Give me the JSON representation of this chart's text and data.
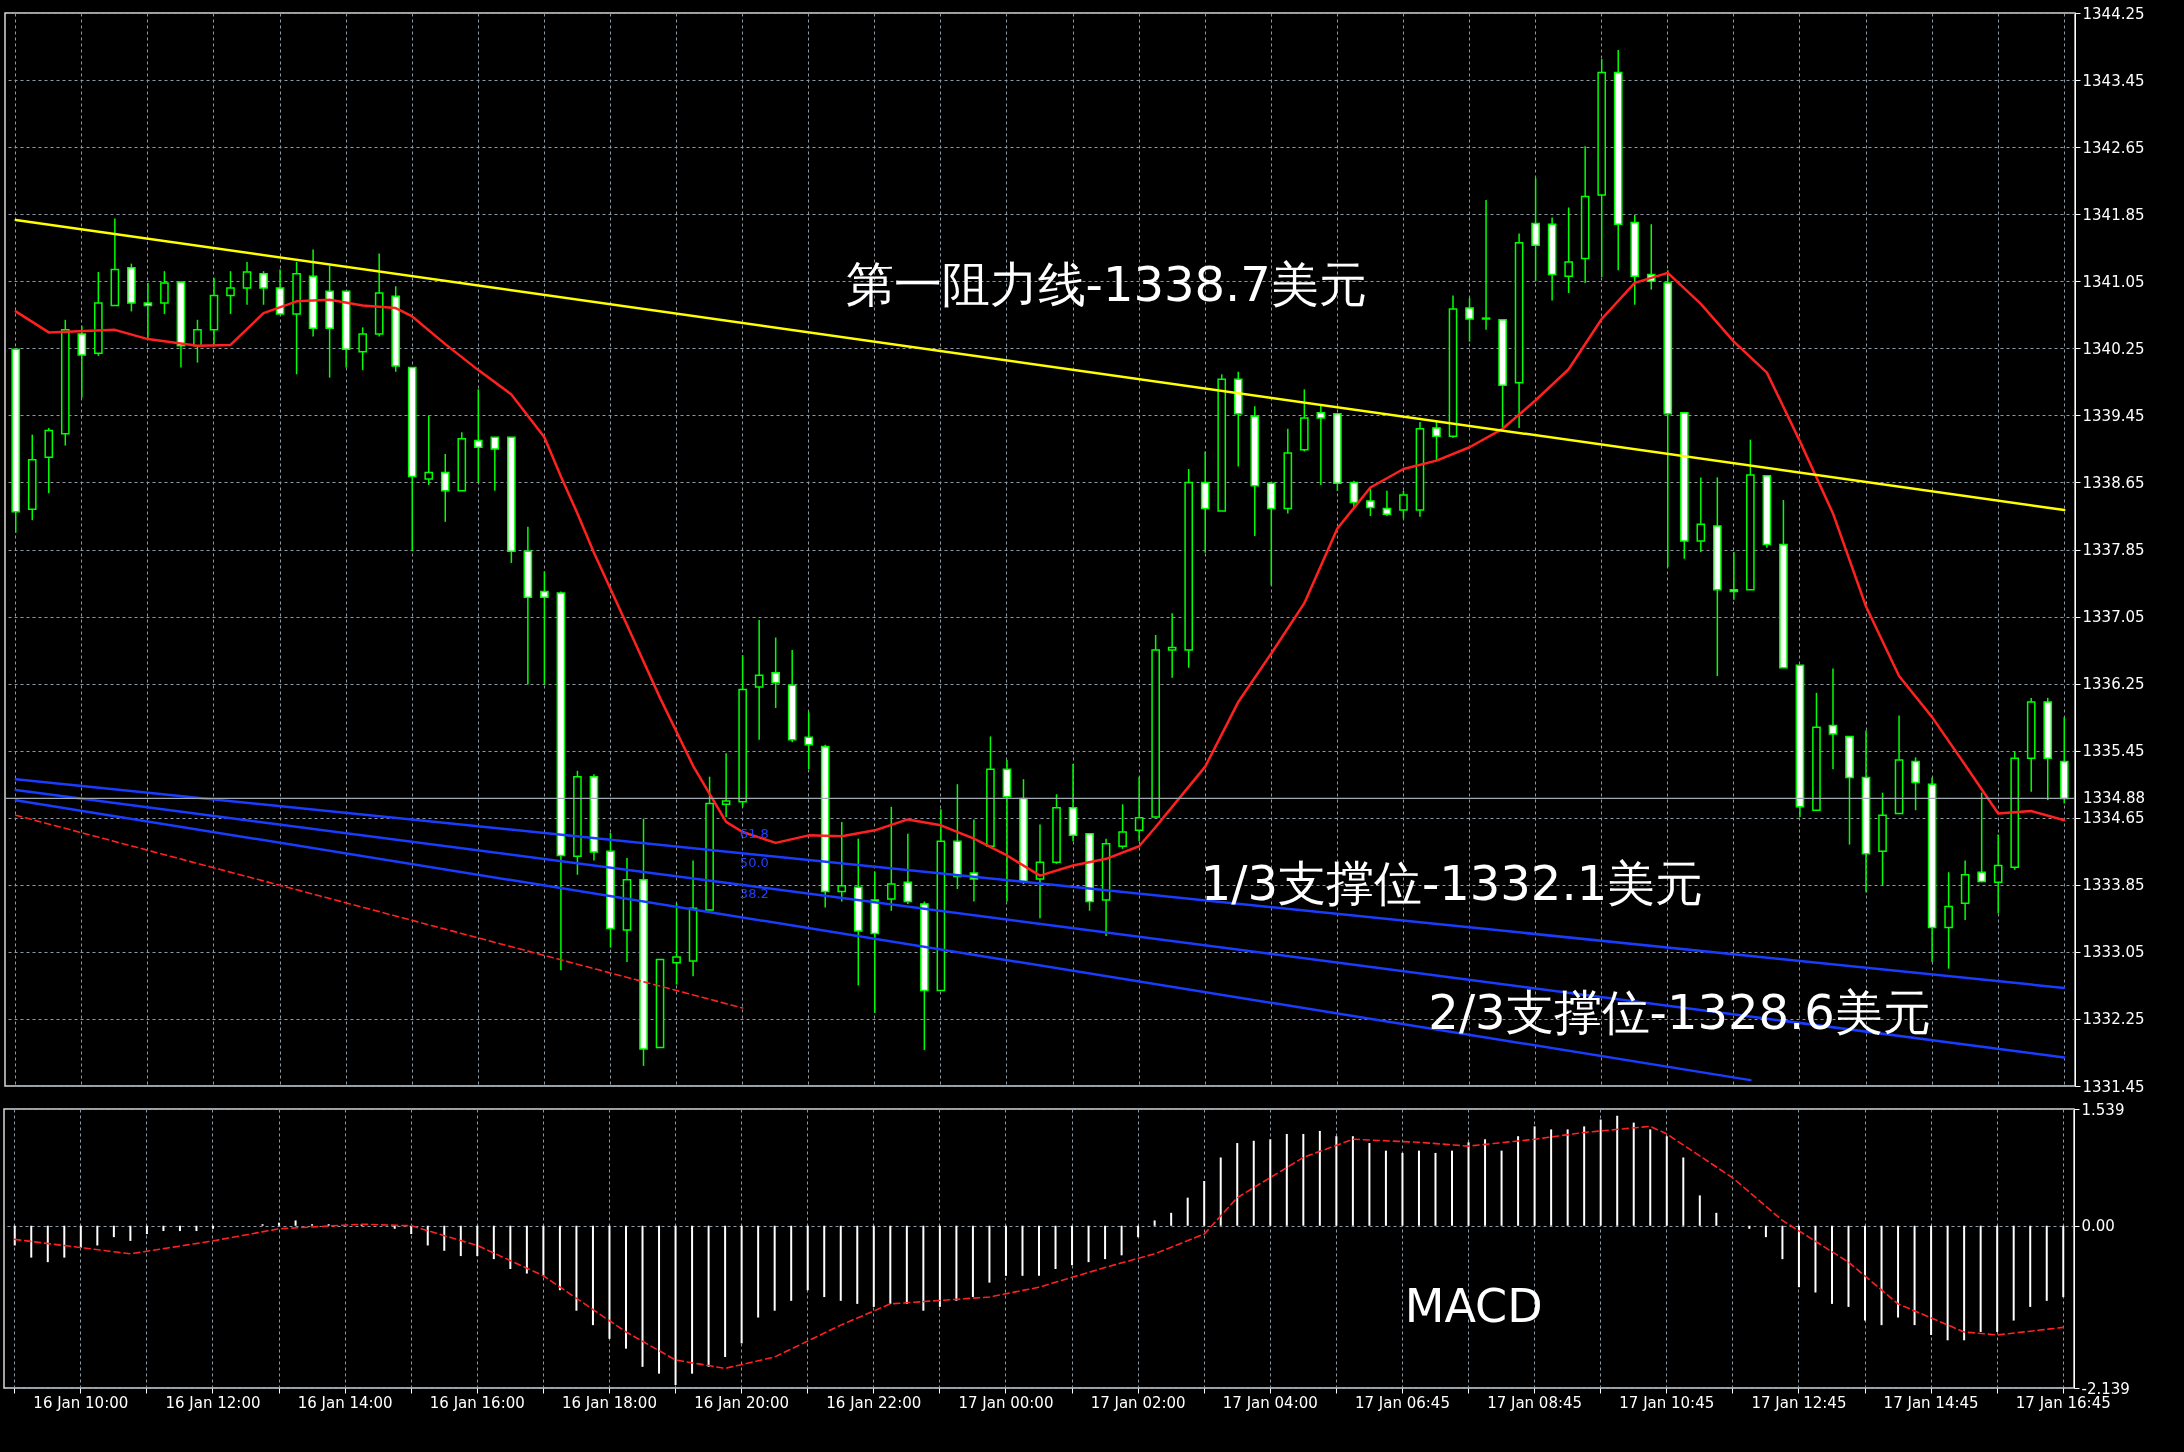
{
  "chart_data": [
    {
      "type": "candlestick",
      "color": "#00ff00",
      "ohlc": [
        [
          1340.24,
          1340.24,
          1338.05,
          1338.3
        ],
        [
          1338.33,
          1339.22,
          1338.2,
          1338.92
        ],
        [
          1338.95,
          1339.3,
          1338.52,
          1339.27
        ],
        [
          1339.23,
          1340.59,
          1339.09,
          1340.47
        ],
        [
          1340.42,
          1340.52,
          1339.66,
          1340.17
        ],
        [
          1340.19,
          1341.16,
          1340.16,
          1340.79
        ],
        [
          1340.76,
          1341.8,
          1340.76,
          1341.19
        ],
        [
          1341.21,
          1341.26,
          1340.69,
          1340.79
        ],
        [
          1340.79,
          1341.03,
          1340.36,
          1340.76
        ],
        [
          1340.79,
          1341.17,
          1340.66,
          1341.03
        ],
        [
          1341.04,
          1341.04,
          1340.02,
          1340.28
        ],
        [
          1340.28,
          1340.59,
          1340.08,
          1340.47
        ],
        [
          1340.47,
          1341.09,
          1340.28,
          1340.88
        ],
        [
          1340.88,
          1341.17,
          1340.66,
          1340.97
        ],
        [
          1340.97,
          1341.28,
          1340.77,
          1341.16
        ],
        [
          1341.14,
          1341.17,
          1340.77,
          1340.97
        ],
        [
          1340.97,
          1341.19,
          1340.66,
          1340.66
        ],
        [
          1340.66,
          1341.28,
          1339.94,
          1341.14
        ],
        [
          1341.11,
          1341.43,
          1340.39,
          1340.49
        ],
        [
          1340.93,
          1341.24,
          1339.9,
          1340.49
        ],
        [
          1340.93,
          1340.93,
          1340.02,
          1340.24
        ],
        [
          1340.21,
          1340.5,
          1339.99,
          1340.42
        ],
        [
          1340.42,
          1341.38,
          1340.39,
          1340.91
        ],
        [
          1340.87,
          1340.99,
          1339.97,
          1340.04
        ],
        [
          1340.02,
          1340.02,
          1337.83,
          1338.72
        ],
        [
          1338.69,
          1339.45,
          1338.62,
          1338.77
        ],
        [
          1338.77,
          1338.99,
          1338.18,
          1338.55
        ],
        [
          1338.55,
          1339.25,
          1338.55,
          1339.17
        ],
        [
          1339.15,
          1339.76,
          1338.65,
          1339.07
        ],
        [
          1339.19,
          1339.19,
          1338.55,
          1339.05
        ],
        [
          1339.19,
          1339.19,
          1337.69,
          1337.83
        ],
        [
          1337.83,
          1338.12,
          1336.24,
          1337.28
        ],
        [
          1337.35,
          1337.59,
          1336.24,
          1337.28
        ],
        [
          1337.33,
          1337.35,
          1332.83,
          1334.2
        ],
        [
          1334.19,
          1335.21,
          1333.97,
          1335.14
        ],
        [
          1335.14,
          1335.17,
          1334.14,
          1334.24
        ],
        [
          1334.25,
          1334.47,
          1333.1,
          1333.33
        ],
        [
          1333.31,
          1334.17,
          1332.93,
          1333.91
        ],
        [
          1333.91,
          1334.64,
          1331.69,
          1331.89
        ],
        [
          1331.91,
          1332.96,
          1331.91,
          1332.96
        ],
        [
          1332.92,
          1333.63,
          1332.66,
          1332.99
        ],
        [
          1332.94,
          1334.14,
          1332.76,
          1333.57
        ],
        [
          1333.55,
          1335.14,
          1333.55,
          1334.82
        ],
        [
          1334.81,
          1335.42,
          1334.66,
          1334.85
        ],
        [
          1334.84,
          1336.59,
          1334.78,
          1336.18
        ],
        [
          1336.21,
          1337.01,
          1335.58,
          1336.35
        ],
        [
          1336.38,
          1336.8,
          1335.96,
          1336.26
        ],
        [
          1336.23,
          1336.65,
          1335.55,
          1335.58
        ],
        [
          1335.61,
          1335.91,
          1335.23,
          1335.52
        ],
        [
          1335.5,
          1335.52,
          1333.58,
          1333.77
        ],
        [
          1333.77,
          1334.6,
          1333.65,
          1333.84
        ],
        [
          1333.82,
          1334.4,
          1332.65,
          1333.3
        ],
        [
          1333.67,
          1334.01,
          1332.32,
          1333.27
        ],
        [
          1333.68,
          1334.78,
          1333.54,
          1333.86
        ],
        [
          1333.88,
          1334.46,
          1333.62,
          1333.65
        ],
        [
          1333.62,
          1333.65,
          1331.88,
          1332.59
        ],
        [
          1332.59,
          1334.75,
          1332.59,
          1334.37
        ],
        [
          1334.37,
          1335.05,
          1333.8,
          1333.95
        ],
        [
          1333.99,
          1334.63,
          1333.65,
          1333.92
        ],
        [
          1334.31,
          1335.62,
          1334.31,
          1335.23
        ],
        [
          1335.23,
          1335.34,
          1333.65,
          1334.9
        ],
        [
          1334.88,
          1335.11,
          1333.86,
          1333.89
        ],
        [
          1333.92,
          1334.57,
          1333.45,
          1334.12
        ],
        [
          1334.12,
          1334.93,
          1334.1,
          1334.77
        ],
        [
          1334.77,
          1335.29,
          1334.37,
          1334.44
        ],
        [
          1334.46,
          1334.46,
          1333.54,
          1333.65
        ],
        [
          1333.67,
          1334.4,
          1333.24,
          1334.34
        ],
        [
          1334.31,
          1334.81,
          1334.28,
          1334.48
        ],
        [
          1334.5,
          1335.14,
          1334.37,
          1334.65
        ],
        [
          1334.66,
          1336.83,
          1334.66,
          1336.65
        ],
        [
          1336.65,
          1337.09,
          1336.32,
          1336.68
        ],
        [
          1336.65,
          1338.81,
          1336.44,
          1338.65
        ],
        [
          1338.65,
          1339.02,
          1337.81,
          1338.34
        ],
        [
          1338.31,
          1339.94,
          1338.31,
          1339.88
        ],
        [
          1339.88,
          1339.97,
          1338.84,
          1339.47
        ],
        [
          1339.44,
          1339.56,
          1338.01,
          1338.61
        ],
        [
          1338.64,
          1338.64,
          1337.42,
          1338.34
        ],
        [
          1338.34,
          1339.29,
          1338.28,
          1339.0
        ],
        [
          1339.04,
          1339.76,
          1339.02,
          1339.42
        ],
        [
          1339.48,
          1339.58,
          1338.62,
          1339.42
        ],
        [
          1339.47,
          1339.47,
          1338.55,
          1338.64
        ],
        [
          1338.65,
          1338.67,
          1338.34,
          1338.41
        ],
        [
          1338.43,
          1338.58,
          1338.25,
          1338.35
        ],
        [
          1338.34,
          1338.55,
          1338.25,
          1338.27
        ],
        [
          1338.32,
          1338.55,
          1338.22,
          1338.5
        ],
        [
          1338.32,
          1339.37,
          1338.24,
          1339.29
        ],
        [
          1339.3,
          1339.39,
          1338.91,
          1339.2
        ],
        [
          1339.2,
          1340.88,
          1339.18,
          1340.72
        ],
        [
          1340.73,
          1340.85,
          1340.33,
          1340.6
        ],
        [
          1340.6,
          1342.02,
          1340.47,
          1340.61
        ],
        [
          1340.59,
          1340.59,
          1339.3,
          1339.81
        ],
        [
          1339.84,
          1341.62,
          1339.3,
          1341.51
        ],
        [
          1341.74,
          1342.28,
          1341.05,
          1341.48
        ],
        [
          1341.73,
          1341.81,
          1340.82,
          1341.13
        ],
        [
          1341.11,
          1341.93,
          1340.91,
          1341.28
        ],
        [
          1341.32,
          1342.66,
          1341.03,
          1342.06
        ],
        [
          1342.08,
          1343.7,
          1341.1,
          1343.54
        ],
        [
          1343.54,
          1343.81,
          1341.18,
          1341.73
        ],
        [
          1341.75,
          1341.84,
          1340.77,
          1341.11
        ],
        [
          1341.13,
          1341.73,
          1340.95,
          1341.05
        ],
        [
          1341.03,
          1341.18,
          1337.64,
          1339.47
        ],
        [
          1339.48,
          1339.48,
          1337.74,
          1337.95
        ],
        [
          1337.95,
          1338.71,
          1337.82,
          1338.15
        ],
        [
          1338.13,
          1338.71,
          1336.34,
          1337.37
        ],
        [
          1337.37,
          1337.82,
          1337.25,
          1337.35
        ],
        [
          1337.37,
          1339.16,
          1337.37,
          1338.74
        ],
        [
          1338.73,
          1338.74,
          1337.87,
          1337.91
        ],
        [
          1337.91,
          1338.44,
          1336.44,
          1336.44
        ],
        [
          1336.47,
          1336.47,
          1334.66,
          1334.78
        ],
        [
          1334.74,
          1336.14,
          1334.74,
          1335.73
        ],
        [
          1335.75,
          1336.43,
          1335.23,
          1335.65
        ],
        [
          1335.62,
          1335.62,
          1334.33,
          1335.13
        ],
        [
          1335.13,
          1335.69,
          1333.76,
          1334.22
        ],
        [
          1334.25,
          1334.95,
          1333.84,
          1334.68
        ],
        [
          1334.7,
          1335.87,
          1334.7,
          1335.34
        ],
        [
          1335.32,
          1335.37,
          1334.74,
          1335.07
        ],
        [
          1335.05,
          1335.13,
          1332.93,
          1333.34
        ],
        [
          1333.34,
          1334.0,
          1332.85,
          1333.59
        ],
        [
          1333.63,
          1334.14,
          1333.43,
          1333.97
        ],
        [
          1334.0,
          1334.95,
          1333.88,
          1333.89
        ],
        [
          1333.88,
          1334.45,
          1333.51,
          1334.08
        ],
        [
          1334.06,
          1335.44,
          1334.03,
          1335.36
        ],
        [
          1335.36,
          1336.08,
          1334.96,
          1336.03
        ],
        [
          1336.03,
          1336.08,
          1334.86,
          1335.36
        ],
        [
          1335.32,
          1335.85,
          1334.82,
          1334.88
        ]
      ],
      "series": [
        {
          "type": "line",
          "color": "#ff2020",
          "values": [
            1340.69,
            null,
            1340.44,
            null,
            null,
            null,
            1340.47,
            null,
            1340.36,
            null,
            null,
            1340.28,
            null,
            1340.29,
            null,
            1340.67,
            null,
            1340.81,
            null,
            1340.83,
            null,
            1340.76,
            null,
            1340.73,
            1340.63,
            null,
            1340.3,
            null,
            1339.99,
            null,
            1339.7,
            null,
            1339.19,
            1338.72,
            1338.28,
            1337.81,
            null,
            1336.95,
            null,
            1336.08,
            null,
            1335.27,
            null,
            1334.6,
            1334.48,
            null,
            1334.35,
            null,
            1334.44,
            null,
            1334.43,
            null,
            1334.5,
            null,
            1334.63,
            null,
            1334.56,
            null,
            1334.4,
            null,
            1334.2,
            null,
            1333.96,
            null,
            1334.08,
            null,
            1334.16,
            null,
            1334.31,
            1334.54,
            1334.78,
            null,
            1335.26,
            null,
            1336.03,
            null,
            1336.61,
            null,
            1337.21,
            null,
            1338.1,
            null,
            1338.59,
            null,
            1338.81,
            null,
            1338.91,
            null,
            1339.07,
            null,
            1339.29,
            null,
            1339.63,
            null,
            1340.0,
            null,
            1340.6,
            null,
            1341.03,
            null,
            1341.15,
            null,
            1340.78,
            null,
            1340.33,
            null,
            1339.96,
            null,
            1339.14,
            null,
            1338.28,
            null,
            1337.17,
            null,
            1336.34,
            null,
            1335.85,
            null,
            1335.28,
            null,
            1334.7,
            null,
            1334.73,
            null,
            1334.62
          ]
        },
        {
          "type": "line",
          "color": "#ffff00",
          "values": [
            1341.78,
            null,
            null,
            null,
            null,
            null,
            null,
            null,
            null,
            null,
            null,
            null,
            null,
            null,
            null,
            null,
            null,
            null,
            null,
            null,
            null,
            null,
            null,
            null,
            null,
            null,
            null,
            null,
            null,
            null,
            null,
            null,
            null,
            null,
            null,
            null,
            null,
            null,
            null,
            null,
            null,
            null,
            null,
            null,
            null,
            null,
            null,
            null,
            null,
            null,
            null,
            null,
            null,
            null,
            null,
            null,
            null,
            null,
            null,
            null,
            null,
            null,
            null,
            null,
            null,
            null,
            null,
            null,
            null,
            null,
            null,
            null,
            null,
            null,
            null,
            null,
            null,
            null,
            null,
            null,
            null,
            null,
            null,
            null,
            null,
            null,
            null,
            null,
            null,
            null,
            null,
            null,
            null,
            null,
            null,
            null,
            null,
            null,
            null,
            null,
            null,
            null,
            null,
            null,
            null,
            null,
            null,
            null,
            null,
            null,
            null,
            null,
            null,
            null,
            null,
            null,
            null,
            null,
            null,
            null,
            null,
            null,
            null,
            null,
            1338.32
          ]
        },
        {
          "type": "line",
          "color": "#1a3cff",
          "values": [
            1335.11,
            null,
            null,
            null,
            null,
            null,
            null,
            null,
            null,
            null,
            null,
            null,
            null,
            null,
            null,
            null,
            null,
            null,
            null,
            null,
            null,
            null,
            null,
            null,
            null,
            null,
            null,
            null,
            null,
            null,
            null,
            null,
            null,
            null,
            null,
            null,
            null,
            null,
            null,
            null,
            null,
            null,
            null,
            null,
            null,
            null,
            null,
            null,
            null,
            null,
            null,
            null,
            null,
            null,
            null,
            null,
            null,
            null,
            null,
            null,
            null,
            null,
            null,
            null,
            null,
            null,
            null,
            null,
            null,
            null,
            null,
            null,
            null,
            null,
            null,
            null,
            null,
            null,
            null,
            null,
            null,
            null,
            null,
            null,
            null,
            null,
            null,
            null,
            null,
            null,
            null,
            null,
            null,
            null,
            null,
            null,
            null,
            null,
            null,
            null,
            null,
            null,
            null,
            null,
            null,
            null,
            null,
            null,
            null,
            null,
            null,
            null,
            null,
            null,
            null,
            null,
            null,
            null,
            null,
            null,
            null,
            null,
            null,
            null,
            1332.62
          ]
        },
        {
          "type": "line",
          "color": "#1a3cff",
          "values": [
            1334.98,
            null,
            null,
            null,
            null,
            null,
            null,
            null,
            null,
            null,
            null,
            null,
            null,
            null,
            null,
            null,
            null,
            null,
            null,
            null,
            null,
            null,
            null,
            null,
            null,
            null,
            null,
            null,
            null,
            null,
            null,
            null,
            null,
            null,
            null,
            null,
            null,
            null,
            null,
            null,
            null,
            null,
            null,
            null,
            null,
            null,
            null,
            null,
            null,
            null,
            null,
            null,
            null,
            null,
            null,
            null,
            null,
            null,
            null,
            null,
            null,
            null,
            null,
            null,
            null,
            null,
            null,
            null,
            null,
            null,
            null,
            null,
            null,
            null,
            null,
            null,
            null,
            null,
            null,
            null,
            null,
            null,
            null,
            null,
            null,
            null,
            null,
            null,
            null,
            null,
            null,
            null,
            null,
            null,
            null,
            null,
            null,
            null,
            null,
            null,
            null,
            null,
            null,
            null,
            null,
            null,
            null,
            null,
            null,
            null,
            null,
            null,
            null,
            null,
            null,
            null,
            null,
            null,
            null,
            null,
            null,
            null,
            null,
            null,
            1331.79
          ]
        },
        {
          "type": "line",
          "color": "#1a3cff",
          "values": [
            1334.86,
            null,
            null,
            null,
            null,
            null,
            null,
            null,
            null,
            null,
            null,
            null,
            null,
            null,
            null,
            null,
            null,
            null,
            null,
            null,
            null,
            null,
            null,
            null,
            null,
            null,
            null,
            null,
            null,
            null,
            null,
            null,
            null,
            null,
            null,
            null,
            null,
            null,
            null,
            null,
            null,
            null,
            null,
            null,
            null,
            null,
            null,
            null,
            null,
            null,
            null,
            null,
            null,
            null,
            null,
            null,
            null,
            null,
            null,
            null,
            null,
            null,
            null,
            null,
            null,
            null,
            null,
            null,
            null,
            null,
            null,
            null,
            null,
            null,
            null,
            null,
            null,
            null,
            null,
            null,
            null,
            null,
            null,
            null,
            null,
            null,
            null,
            null,
            null,
            null,
            null,
            null,
            null,
            null,
            null,
            null,
            null,
            null,
            null,
            null,
            null,
            null,
            null,
            null,
            null,
            1331.52,
            null,
            null,
            null,
            null,
            null,
            null,
            null,
            null,
            null,
            null,
            null,
            null,
            null,
            null,
            null,
            null,
            null,
            null,
            null
          ]
        },
        {
          "type": "line",
          "color": "#ff2020",
          "line_style": "dashed",
          "values": [
            1334.68,
            null,
            null,
            null,
            null,
            null,
            null,
            null,
            null,
            null,
            null,
            null,
            null,
            null,
            null,
            null,
            null,
            null,
            null,
            null,
            null,
            null,
            null,
            null,
            null,
            null,
            null,
            null,
            null,
            null,
            null,
            null,
            null,
            null,
            null,
            null,
            null,
            null,
            null,
            null,
            null,
            null,
            null,
            null,
            1332.38,
            null,
            null,
            null,
            null,
            null,
            null,
            null,
            null,
            null,
            null,
            null,
            null,
            null,
            null,
            null,
            null,
            null,
            null,
            null,
            null,
            null,
            null,
            null,
            null,
            null,
            null,
            null,
            null,
            null,
            null,
            null,
            null,
            null,
            null,
            null,
            null,
            null,
            null,
            null,
            null,
            null,
            null,
            null,
            null,
            null,
            null,
            null,
            null,
            null,
            null,
            null,
            null,
            null,
            null,
            null,
            null,
            null,
            null,
            null,
            null,
            null,
            null,
            null,
            null,
            null,
            null,
            null,
            null,
            null,
            null,
            null,
            null,
            null,
            null,
            null,
            null,
            null,
            null,
            null,
            null
          ]
        }
      ],
      "ylim": [
        1331.45,
        1344.25
      ],
      "yticks": [
        1331.45,
        1332.25,
        1333.05,
        1333.85,
        1334.65,
        1335.45,
        1336.25,
        1337.05,
        1337.85,
        1338.65,
        1339.45,
        1340.25,
        1341.05,
        1341.85,
        1342.65,
        1343.45,
        1344.25
      ],
      "ref_lines": [
        {
          "axis": "y",
          "value": 1334.88,
          "label": "1334.88",
          "color": "#a0a8b0"
        }
      ],
      "annotations": [
        "第一阻力线-1338.7美元",
        "1/3支撑位-1332.1美元",
        "2/3支撑位-1328.6美元",
        "61.8",
        "50.0",
        "38.2"
      ],
      "grid": true,
      "tick_labels": "y"
    },
    {
      "type": "bar",
      "categories": [
        null,
        null,
        null,
        null,
        "16 Jan 10:00",
        null,
        null,
        null,
        null,
        null,
        null,
        null,
        "16 Jan 12:00",
        null,
        null,
        null,
        null,
        null,
        null,
        null,
        "16 Jan 14:00",
        null,
        null,
        null,
        null,
        null,
        null,
        null,
        "16 Jan 16:00",
        null,
        null,
        null,
        null,
        null,
        null,
        null,
        "16 Jan 18:00",
        null,
        null,
        null,
        null,
        null,
        null,
        null,
        "16 Jan 20:00",
        null,
        null,
        null,
        null,
        null,
        null,
        null,
        "16 Jan 22:00",
        null,
        null,
        null,
        null,
        null,
        null,
        null,
        "17 Jan 00:00",
        null,
        null,
        null,
        null,
        null,
        null,
        null,
        "17 Jan 02:00",
        null,
        null,
        null,
        null,
        null,
        null,
        null,
        "17 Jan 04:00",
        null,
        null,
        null,
        null,
        null,
        null,
        null,
        "17 Jan 06:45",
        null,
        null,
        null,
        null,
        null,
        null,
        null,
        "17 Jan 08:45",
        null,
        null,
        null,
        null,
        null,
        null,
        null,
        "17 Jan 10:45",
        null,
        null,
        null,
        null,
        null,
        null,
        null,
        "17 Jan 12:45",
        null,
        null,
        null,
        null,
        null,
        null,
        null,
        "17 Jan 14:45",
        null,
        null,
        null,
        null,
        null,
        null,
        null,
        "17 Jan 16:45"
      ],
      "series": [
        {
          "type": "bar",
          "color": "#ffffff",
          "values": [
            -0.26,
            -0.42,
            -0.48,
            -0.42,
            -0.29,
            -0.26,
            -0.15,
            -0.2,
            -0.11,
            -0.07,
            -0.07,
            -0.07,
            -0.04,
            0,
            0,
            0.02,
            0.04,
            0.07,
            0.02,
            0.02,
            0,
            0.02,
            0,
            -0.04,
            -0.11,
            -0.26,
            -0.33,
            -0.4,
            -0.4,
            -0.44,
            -0.57,
            -0.63,
            -0.66,
            -0.85,
            -1.12,
            -1.31,
            -1.49,
            -1.62,
            -1.86,
            -1.95,
            -2.1,
            -1.95,
            -1.86,
            -1.73,
            -1.55,
            -1.21,
            -1.12,
            -0.99,
            -0.85,
            -0.94,
            -0.99,
            -1.03,
            -1.07,
            -1.03,
            -1.03,
            -1.12,
            -1.07,
            -0.99,
            -0.94,
            -0.75,
            -0.66,
            -0.66,
            -0.66,
            -0.57,
            -0.52,
            -0.48,
            -0.44,
            -0.39,
            -0.15,
            0.07,
            0.17,
            0.37,
            0.59,
            0.9,
            1.09,
            1.12,
            1.14,
            1.21,
            1.21,
            1.25,
            1.18,
            1.18,
            1.09,
            0.99,
            0.96,
            0.99,
            0.96,
            0.99,
            1.1,
            1.14,
            0.99,
            1.18,
            1.31,
            1.27,
            1.27,
            1.31,
            1.4,
            1.45,
            1.36,
            1.27,
            1.18,
            0.9,
            0.4,
            0.17,
            0,
            -0.04,
            -0.15,
            -0.44,
            -0.81,
            -0.88,
            -1.03,
            -1.07,
            -1.25,
            -1.31,
            -1.21,
            -1.31,
            -1.44,
            -1.51,
            -1.51,
            -1.4,
            -1.4,
            -1.25,
            -1.07,
            -0.99,
            -0.94
          ]
        },
        {
          "type": "line",
          "color": "#ff2020",
          "line_style": "dashed",
          "values": [
            -0.18,
            null,
            null,
            null,
            null,
            null,
            null,
            -0.37,
            null,
            null,
            null,
            null,
            -0.2,
            null,
            null,
            null,
            -0.04,
            null,
            null,
            null,
            null,
            0.02,
            null,
            null,
            0,
            null,
            null,
            null,
            -0.26,
            null,
            null,
            null,
            -0.66,
            null,
            null,
            null,
            null,
            -1.4,
            null,
            null,
            -1.77,
            null,
            null,
            -1.88,
            null,
            null,
            -1.73,
            null,
            null,
            null,
            -1.31,
            null,
            null,
            -1.03,
            null,
            null,
            null,
            null,
            null,
            -0.94,
            null,
            null,
            -0.81,
            null,
            null,
            null,
            -0.55,
            null,
            null,
            -0.37,
            null,
            null,
            -0.11,
            null,
            0.37,
            null,
            null,
            null,
            0.9,
            null,
            null,
            1.14,
            null,
            null,
            null,
            1.1,
            null,
            null,
            1.05,
            null,
            null,
            null,
            1.14,
            null,
            null,
            1.23,
            null,
            null,
            null,
            1.31,
            1.21,
            null,
            null,
            null,
            0.63,
            null,
            null,
            0.07,
            null,
            null,
            null,
            -0.48,
            null,
            null,
            -1.03,
            null,
            null,
            null,
            -1.4,
            null,
            -1.44,
            null,
            null,
            null,
            -1.34
          ]
        }
      ],
      "ylim": [
        -2.139,
        1.539
      ],
      "yticks": [
        -2.139,
        {
          "value": 0,
          "label": "0.00"
        },
        1.539
      ],
      "annotations": [
        "MACD"
      ],
      "grid": true
    }
  ]
}
